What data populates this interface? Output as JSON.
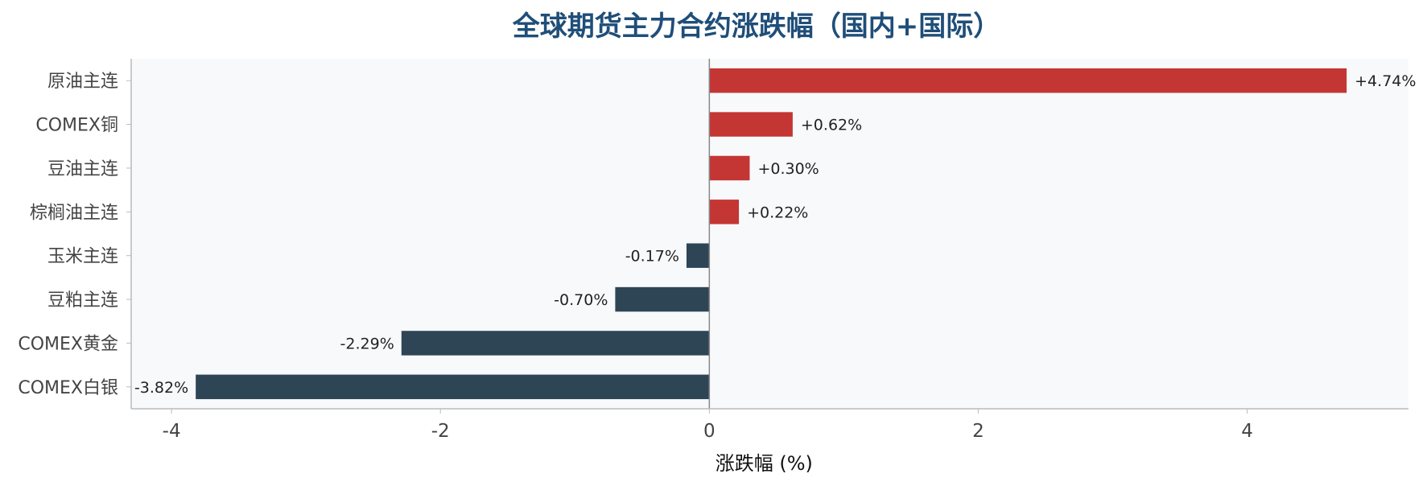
{
  "chart_data": {
    "type": "bar",
    "orientation": "horizontal",
    "title": "全球期货主力合约涨跌幅（国内+国际）",
    "xlabel": "涨跌幅 (%)",
    "ylabel": "",
    "categories": [
      "原油主连",
      "COMEX铜",
      "豆油主连",
      "棕榈油主连",
      "玉米主连",
      "豆粕主连",
      "COMEX黄金",
      "COMEX白银"
    ],
    "values": [
      4.74,
      0.62,
      0.3,
      0.22,
      -0.17,
      -0.7,
      -2.29,
      -3.82
    ],
    "value_labels": [
      "+4.74%",
      "+0.62%",
      "+0.30%",
      "+0.22%",
      "-0.17%",
      "-0.70%",
      "-2.29%",
      "-3.82%"
    ],
    "xlim": [
      -4.3,
      5.2
    ],
    "xticks": [
      -4,
      -2,
      0,
      2,
      4
    ],
    "xtick_labels": [
      "-4",
      "-2",
      "0",
      "2",
      "4"
    ],
    "grid": false,
    "colors": {
      "positive": "#c43634",
      "negative": "#2e4556",
      "plot_background": "#f8f9fb",
      "zero_line": "#888888",
      "axis": "#bbbbbb",
      "title": "#1f4e79"
    }
  }
}
